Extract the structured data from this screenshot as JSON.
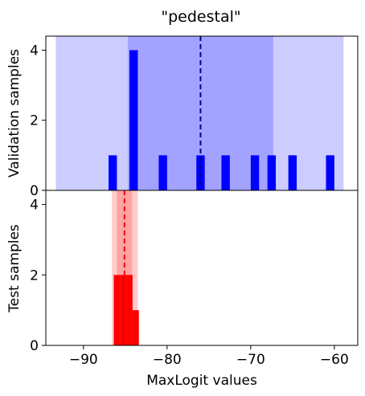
{
  "chart_data": {
    "title": "\"pedestal\"",
    "xlabel": "MaxLogit values",
    "xlim": [
      -94.5,
      -57.2
    ],
    "xticks": [
      -90,
      -80,
      -70,
      -60
    ],
    "xtick_labels": [
      "−90",
      "−80",
      "−70",
      "−60"
    ],
    "grid": false,
    "panels": [
      {
        "id": "validation",
        "type": "bar",
        "ylabel": "Validation samples",
        "ylim": [
          0,
          4.4
        ],
        "yticks": [
          0,
          2,
          4
        ],
        "ytick_labels": [
          "0",
          "2",
          "4"
        ],
        "bar_color": "#0000ff",
        "bin_width": 1.0,
        "bars": [
          {
            "x": -86.5,
            "count": 1
          },
          {
            "x": -84.0,
            "count": 4
          },
          {
            "x": -80.5,
            "count": 1
          },
          {
            "x": -76.0,
            "count": 1
          },
          {
            "x": -73.0,
            "count": 1
          },
          {
            "x": -69.5,
            "count": 1
          },
          {
            "x": -67.5,
            "count": 1
          },
          {
            "x": -65.0,
            "count": 1
          },
          {
            "x": -60.5,
            "count": 1
          }
        ],
        "bands": [
          {
            "from": -93.3,
            "to": -58.9,
            "color": "#ccccff"
          },
          {
            "from": -84.7,
            "to": -67.3,
            "color": "#a3a3ff"
          }
        ],
        "mean_line": {
          "x": -76.0,
          "color": "#00008b"
        }
      },
      {
        "id": "test",
        "type": "bar",
        "ylabel": "Test samples",
        "ylim": [
          0,
          4.4
        ],
        "yticks": [
          0,
          2,
          4
        ],
        "ytick_labels": [
          "0",
          "2",
          "4"
        ],
        "bar_color": "#ff0000",
        "bin_width": 0.75,
        "bars": [
          {
            "x": -86.0,
            "count": 2
          },
          {
            "x": -85.25,
            "count": 2
          },
          {
            "x": -84.5,
            "count": 2
          },
          {
            "x": -83.75,
            "count": 1
          }
        ],
        "bands": [
          {
            "from": -86.6,
            "to": -83.5,
            "color": "#ffcccc"
          },
          {
            "from": -86.0,
            "to": -84.2,
            "color": "#ffa3a3"
          }
        ],
        "mean_line": {
          "x": -85.1,
          "color": "#ff0000"
        }
      }
    ]
  }
}
